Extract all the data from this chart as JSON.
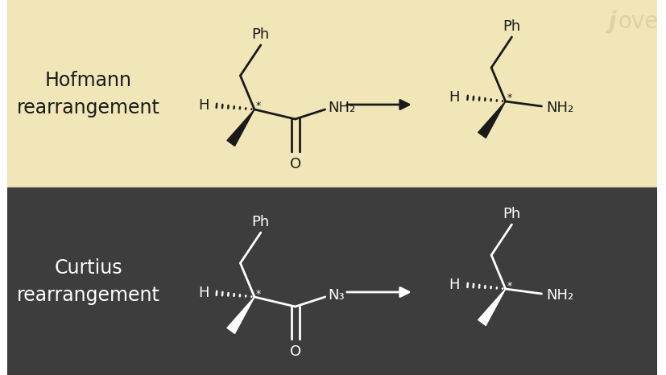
{
  "top_bg": "#f0e6b8",
  "bottom_bg": "#3d3d3d",
  "top_text_color": "#1a1a1a",
  "bottom_text_color": "#ffffff",
  "jove_color": "#d8d0a0",
  "title1": "Hofmann\nrearrangement",
  "title2": "Curtius\nrearrangement",
  "ph_label": "Ph",
  "h_label": "H",
  "o_label": "O",
  "star": "*",
  "jove_text": "jove"
}
